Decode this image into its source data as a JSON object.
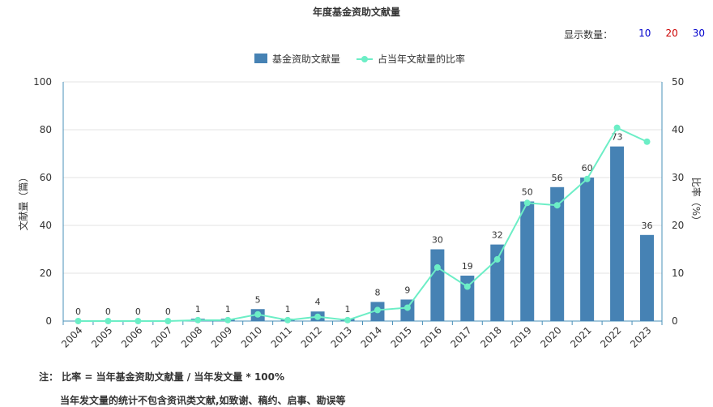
{
  "title": "年度基金资助文献量",
  "display_count": {
    "label": "显示数量：",
    "options": [
      {
        "label": "10",
        "color": "#0000cc"
      },
      {
        "label": "20",
        "color": "#cc0000"
      },
      {
        "label": "30",
        "color": "#0000cc"
      }
    ]
  },
  "notes": {
    "line1": "注： 比率 = 当年基金资助文献量 / 当年发文量 * 100%",
    "line2": "当年发文量的统计不包含资讯类文献,如致谢、稿约、启事、勘误等"
  },
  "chart_data": {
    "type": "bar",
    "categories": [
      "2004",
      "2005",
      "2006",
      "2007",
      "2008",
      "2009",
      "2010",
      "2011",
      "2012",
      "2013",
      "2014",
      "2015",
      "2016",
      "2017",
      "2018",
      "2019",
      "2020",
      "2021",
      "2022",
      "2023"
    ],
    "series": [
      {
        "name": "基金资助文献量",
        "type": "bar",
        "axis": "left",
        "color": "#4682b4",
        "values": [
          0,
          0,
          0,
          0,
          1,
          1,
          5,
          1,
          4,
          1,
          8,
          9,
          30,
          19,
          32,
          50,
          56,
          60,
          73,
          36
        ],
        "data_labels": true
      },
      {
        "name": "占当年文献量的比率",
        "type": "line",
        "axis": "right",
        "color": "#6ceec6",
        "values": [
          0,
          0,
          0,
          0,
          0.2,
          0.2,
          1.4,
          0.2,
          0.9,
          0.2,
          2.3,
          2.8,
          11.2,
          7.2,
          12.9,
          24.7,
          24.2,
          29.7,
          40.4,
          37.5
        ],
        "data_labels": false
      }
    ],
    "ylabel": "文献量（篇）",
    "ylabel_right": "比率（%）",
    "ylim": [
      0,
      100
    ],
    "ylim_right": [
      0,
      50
    ],
    "yticks": [
      0,
      20,
      40,
      60,
      80,
      100
    ],
    "yticks_right": [
      0,
      10,
      20,
      30,
      40,
      50
    ],
    "grid": true,
    "legend": "top-center"
  }
}
